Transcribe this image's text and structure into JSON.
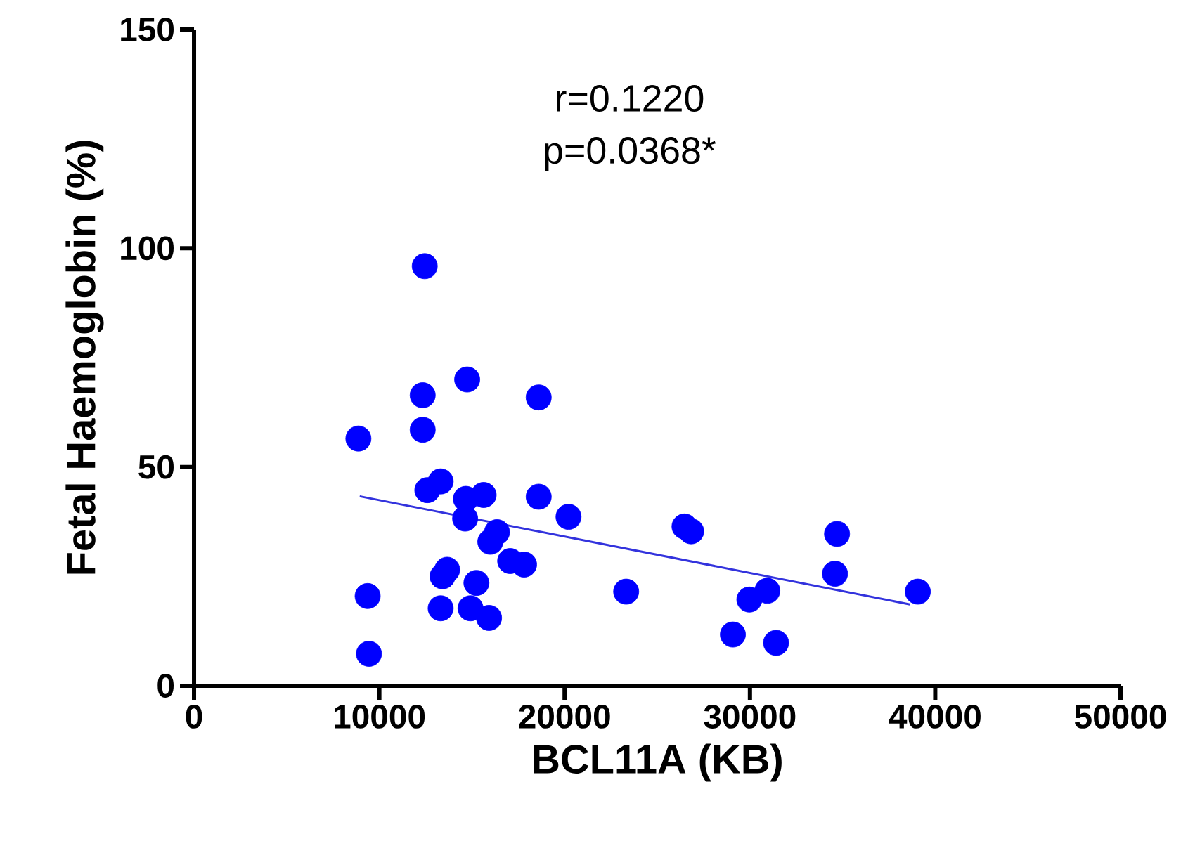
{
  "chart_data": {
    "type": "scatter",
    "xlabel": "BCL11A (KB)",
    "ylabel": "Fetal Haemoglobin (%)",
    "annotations": [
      "r=0.1220",
      "p=0.0368*"
    ],
    "xlim": [
      0,
      50000
    ],
    "ylim": [
      0,
      150
    ],
    "xticks": [
      0,
      10000,
      20000,
      30000,
      40000,
      50000
    ],
    "yticks": [
      0,
      50,
      100,
      150
    ],
    "marker": "circle",
    "series": [
      {
        "color": "#0000ff",
        "x": [
          12450,
          14740,
          18600,
          12340,
          12340,
          8870,
          12590,
          13310,
          14670,
          15630,
          18600,
          14630,
          20210,
          16350,
          15990,
          17060,
          17810,
          13660,
          13410,
          15240,
          9370,
          13310,
          14920,
          15920,
          9440,
          23320,
          26470,
          26830,
          34700,
          34590,
          29970,
          30940,
          29080,
          31410,
          39060
        ],
        "values": [
          95.9,
          70.0,
          65.9,
          66.4,
          58.5,
          56.5,
          44.7,
          46.7,
          42.7,
          43.6,
          43.2,
          38.2,
          38.6,
          35.1,
          32.9,
          28.5,
          27.7,
          26.5,
          25.0,
          23.5,
          20.5,
          17.7,
          17.7,
          15.5,
          7.3,
          21.5,
          36.4,
          35.3,
          34.7,
          25.6,
          19.7,
          21.7,
          11.7,
          9.8,
          21.5
        ]
      },
      {
        "type": "line",
        "color": "#3333dd",
        "marker": "none",
        "line_style": "solid",
        "x": [
          8940,
          38630
        ],
        "values": [
          43.3,
          18.6
        ]
      }
    ]
  }
}
